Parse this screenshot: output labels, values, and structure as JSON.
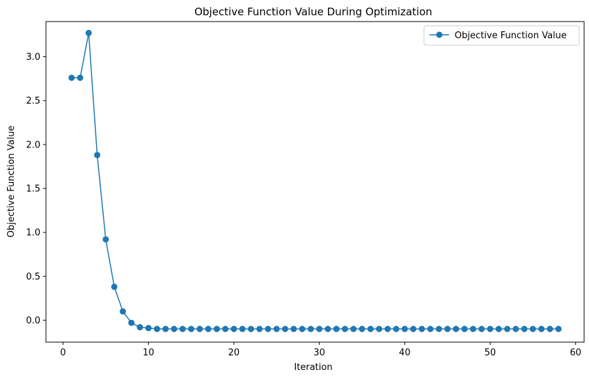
{
  "chart_data": {
    "type": "line",
    "title": "Objective Function Value During Optimization",
    "xlabel": "Iteration",
    "ylabel": "Objective Function Value",
    "xlim": [
      -2.0,
      61.0
    ],
    "ylim": [
      -0.25,
      3.4
    ],
    "xticks": [
      0,
      10,
      20,
      30,
      40,
      50,
      60
    ],
    "yticks": [
      0.0,
      0.5,
      1.0,
      1.5,
      2.0,
      2.5,
      3.0
    ],
    "xtick_labels": [
      "0",
      "10",
      "20",
      "30",
      "40",
      "50",
      "60"
    ],
    "ytick_labels": [
      "0.0",
      "0.5",
      "1.0",
      "1.5",
      "2.0",
      "2.5",
      "3.0"
    ],
    "grid": false,
    "legend_position": "top-right",
    "series": [
      {
        "name": "Objective Function Value",
        "color": "#1f77b4",
        "marker": "circle",
        "x": [
          1,
          2,
          3,
          4,
          5,
          6,
          7,
          8,
          9,
          10,
          11,
          12,
          13,
          14,
          15,
          16,
          17,
          18,
          19,
          20,
          21,
          22,
          23,
          24,
          25,
          26,
          27,
          28,
          29,
          30,
          31,
          32,
          33,
          34,
          35,
          36,
          37,
          38,
          39,
          40,
          41,
          42,
          43,
          44,
          45,
          46,
          47,
          48,
          49,
          50,
          51,
          52,
          53,
          54,
          55,
          56,
          57,
          58
        ],
        "y": [
          2.76,
          2.76,
          3.27,
          1.88,
          0.92,
          0.38,
          0.1,
          -0.03,
          -0.08,
          -0.09,
          -0.1,
          -0.1,
          -0.1,
          -0.1,
          -0.1,
          -0.1,
          -0.1,
          -0.1,
          -0.1,
          -0.1,
          -0.1,
          -0.1,
          -0.1,
          -0.1,
          -0.1,
          -0.1,
          -0.1,
          -0.1,
          -0.1,
          -0.1,
          -0.1,
          -0.1,
          -0.1,
          -0.1,
          -0.1,
          -0.1,
          -0.1,
          -0.1,
          -0.1,
          -0.1,
          -0.1,
          -0.1,
          -0.1,
          -0.1,
          -0.1,
          -0.1,
          -0.1,
          -0.1,
          -0.1,
          -0.1,
          -0.1,
          -0.1,
          -0.1,
          -0.1,
          -0.1,
          -0.1,
          -0.1,
          -0.1
        ]
      }
    ]
  }
}
